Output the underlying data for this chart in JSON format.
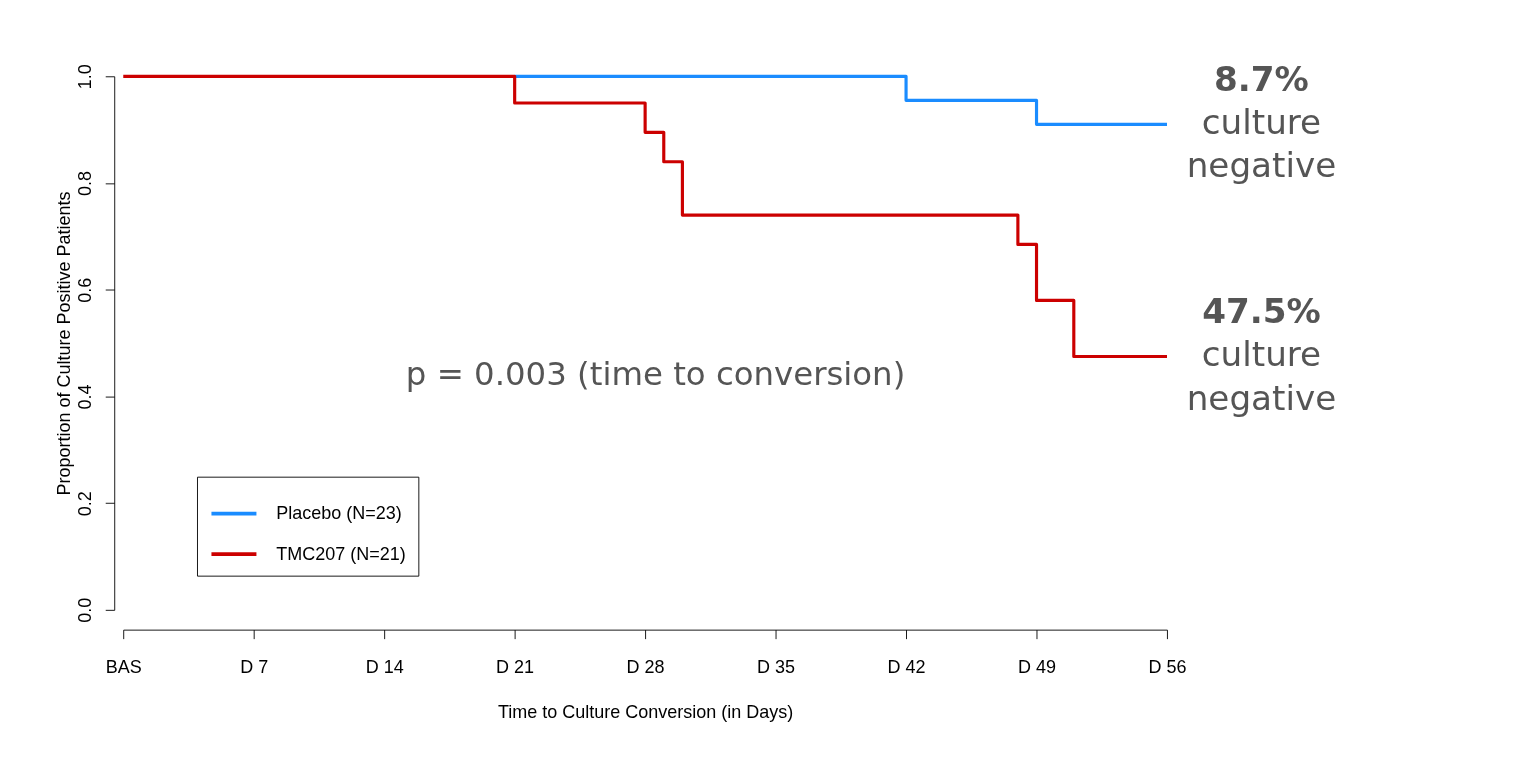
{
  "chart_data": {
    "type": "step",
    "xlabel": "Time to Culture Conversion (in Days)",
    "ylabel": "Proportion of Culture Positive Patients",
    "categories": [
      "BAS",
      null,
      null,
      null,
      null,
      null,
      null,
      "D 7",
      null,
      null,
      null,
      null,
      null,
      null,
      "D 14",
      null,
      null,
      null,
      null,
      null,
      null,
      "D 21",
      null,
      null,
      null,
      null,
      null,
      null,
      "D 28",
      null,
      null,
      null,
      null,
      null,
      null,
      "D 35",
      null,
      null,
      null,
      null,
      null,
      null,
      "D 42",
      null,
      null,
      null,
      null,
      null,
      null,
      "D 49",
      null,
      null,
      null,
      null,
      null,
      null,
      "D 56"
    ],
    "series": [
      {
        "name": "Placebo (N=23)",
        "color": "#1a8cff",
        "values": [
          null,
          null,
          null,
          null,
          null,
          null,
          null,
          null,
          null,
          null,
          null,
          null,
          null,
          null,
          null,
          null,
          null,
          null,
          null,
          null,
          null,
          1,
          1,
          1,
          1,
          1,
          1,
          1,
          1,
          1,
          1,
          1,
          1,
          1,
          1,
          1,
          1,
          1,
          1,
          1,
          1,
          1,
          0.955,
          0.955,
          0.955,
          0.955,
          0.955,
          0.955,
          0.955,
          0.91,
          0.91,
          0.91,
          0.91,
          0.91,
          0.91,
          0.91,
          0.91
        ]
      },
      {
        "name": "TMC207 (N=21)",
        "color": "#cc0000",
        "values": [
          1,
          1,
          1,
          1,
          1,
          1,
          1,
          1,
          1,
          1,
          1,
          1,
          1,
          1,
          1,
          1,
          1,
          1,
          1,
          1,
          1,
          0.95,
          0.95,
          0.95,
          0.95,
          0.95,
          0.95,
          0.95,
          0.895,
          0.84,
          0.74,
          0.74,
          0.74,
          0.74,
          0.74,
          0.74,
          0.74,
          0.74,
          0.74,
          0.74,
          0.74,
          0.74,
          0.74,
          0.74,
          0.74,
          0.74,
          0.74,
          0.74,
          0.685,
          0.58,
          0.58,
          0.475,
          0.475,
          0.475,
          0.475,
          0.475,
          0.475
        ]
      }
    ],
    "ylim": [
      0,
      1
    ],
    "yticks": [
      {
        "value": 0,
        "label": "0.0"
      },
      {
        "value": 0.2,
        "label": "0.2"
      },
      {
        "value": 0.4,
        "label": "0.4"
      },
      {
        "value": 0.6,
        "label": "0.6"
      },
      {
        "value": 0.8,
        "label": "0.8"
      },
      {
        "value": 1,
        "label": "1.0"
      }
    ],
    "annotations": [
      {
        "text": "8.7%\nculture\nnegative",
        "x": "D 56",
        "y": 0.91
      },
      {
        "text": "47.5%\nculture\nnegative",
        "x": "D 56",
        "y": 0.475
      },
      "p = 0.003 (time to conversion)"
    ],
    "legend": "bottom left",
    "grid": false,
    "marker": "none",
    "line_style": "solid"
  }
}
